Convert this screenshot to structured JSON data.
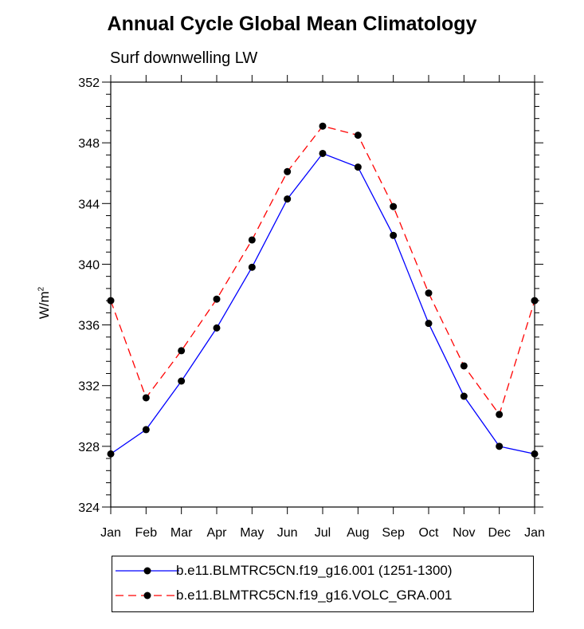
{
  "chart_data": {
    "type": "line",
    "title": "Annual Cycle Global Mean Climatology",
    "subtitle": "Surf downwelling LW",
    "ylabel_base": "W/m",
    "ylabel_sup": "2",
    "categories": [
      "Jan",
      "Feb",
      "Mar",
      "Apr",
      "May",
      "Jun",
      "Jul",
      "Aug",
      "Sep",
      "Oct",
      "Nov",
      "Dec",
      "Jan"
    ],
    "ylim": [
      324,
      352
    ],
    "yticks": [
      324,
      328,
      332,
      336,
      340,
      344,
      348,
      352
    ],
    "grid": false,
    "legend_position": "bottom",
    "series": [
      {
        "name": "b.e11.BLMTRC5CN.f19_g16.001 (1251-1300)",
        "color": "#0000ff",
        "dash": "solid",
        "values": [
          327.5,
          329.1,
          332.3,
          335.8,
          339.8,
          344.3,
          347.3,
          346.4,
          341.9,
          336.1,
          331.3,
          328.0,
          327.5
        ]
      },
      {
        "name": "b.e11.BLMTRC5CN.f19_g16.VOLC_GRA.001",
        "color": "#ff0000",
        "dash": "dashed",
        "values": [
          337.6,
          331.2,
          334.3,
          337.7,
          341.6,
          346.1,
          349.1,
          348.5,
          343.8,
          338.1,
          333.3,
          330.1,
          337.6
        ]
      }
    ]
  }
}
